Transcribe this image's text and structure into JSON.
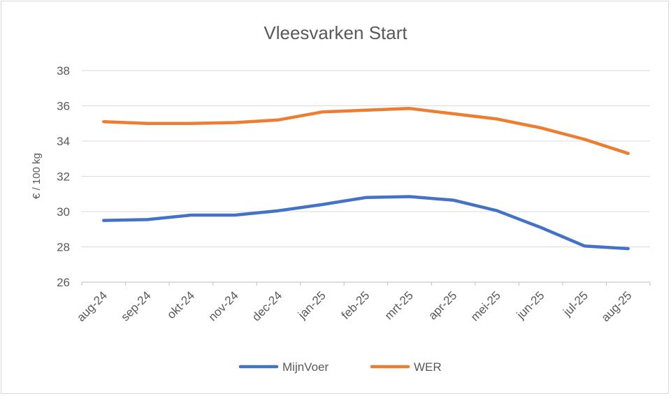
{
  "chart_data": {
    "type": "line",
    "title": "Vleesvarken Start",
    "ylabel": "€ / 100 kg",
    "xlabel": "",
    "ylim": [
      26,
      38
    ],
    "yticks": [
      "26",
      "28",
      "30",
      "32",
      "34",
      "36",
      "38"
    ],
    "categories": [
      "aug-24",
      "sep-24",
      "okt-24",
      "nov-24",
      "dec-24",
      "jan-25",
      "feb-25",
      "mrt-25",
      "apr-25",
      "mei-25",
      "jun-25",
      "jul-25",
      "aug-25"
    ],
    "grid": true,
    "legend_position": "bottom",
    "series": [
      {
        "name": "MijnVoer",
        "color": "#4472c4",
        "values": [
          29.5,
          29.55,
          29.8,
          29.8,
          30.05,
          30.4,
          30.8,
          30.85,
          30.65,
          30.05,
          29.1,
          28.05,
          27.9
        ]
      },
      {
        "name": "WER",
        "color": "#ed7d31",
        "values": [
          35.1,
          35.0,
          35.0,
          35.05,
          35.2,
          35.65,
          35.75,
          35.85,
          35.55,
          35.25,
          34.75,
          34.1,
          33.3
        ]
      }
    ]
  }
}
